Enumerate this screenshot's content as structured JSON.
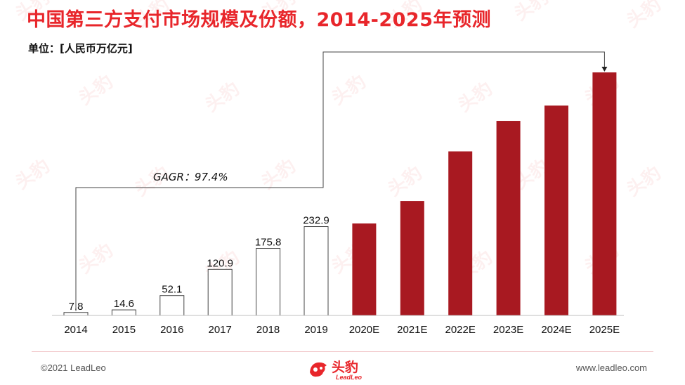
{
  "header": {
    "title": "中国第三方支付市场规模及份额，2014-2025年预测",
    "unit": "单位：[人民币万亿元]"
  },
  "annotation": {
    "cagr_label": "GAGR：97.4%"
  },
  "footer": {
    "copyright": "©2021 LeadLeo",
    "website": "www.leadleo.com",
    "logo_cn": "头豹",
    "logo_en": "LeadLeo"
  },
  "watermark": {
    "text_cn": "头豹",
    "text_en": "LeadLeo"
  },
  "colors": {
    "accent": "#e8262b",
    "bar_forecast": "#a81921",
    "bar_actual_fill": "#ffffff",
    "bar_actual_stroke": "#444444"
  },
  "chart_data": {
    "type": "bar",
    "categories": [
      "2014",
      "2015",
      "2016",
      "2017",
      "2018",
      "2019",
      "2020E",
      "2021E",
      "2022E",
      "2023E",
      "2024E",
      "2025E"
    ],
    "values": [
      7.8,
      14.6,
      52.1,
      120.9,
      175.8,
      232.9,
      241.0,
      300.0,
      430.0,
      510.0,
      550.0,
      637.0
    ],
    "data_labels": [
      "7.8",
      "14.6",
      "52.1",
      "120.9",
      "175.8",
      "232.9",
      "",
      "",
      "",
      "",
      "",
      ""
    ],
    "forecast_from_index": 6,
    "ylim": [
      0,
      650
    ],
    "grid": false,
    "legend": "none",
    "xlabel": "",
    "ylabel": ""
  }
}
